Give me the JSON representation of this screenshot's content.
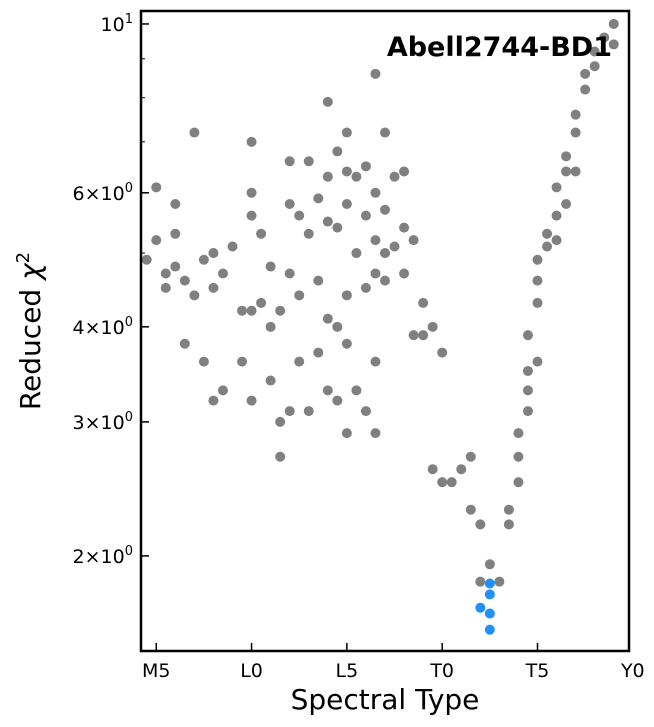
{
  "chart_data": {
    "type": "scatter",
    "title": "Abell2744-BD1",
    "xlabel": "Spectral Type",
    "ylabel": "Reduced χ²",
    "yscale": "log",
    "xlim": [
      -0.8,
      24.8
    ],
    "ylim": [
      1.5,
      10.4
    ],
    "x_ticks": [
      {
        "label": "M5",
        "value": 0
      },
      {
        "label": "L0",
        "value": 5
      },
      {
        "label": "L5",
        "value": 10
      },
      {
        "label": "T0",
        "value": 15
      },
      {
        "label": "T5",
        "value": 20
      },
      {
        "label": "Y0",
        "value": 25
      }
    ],
    "y_ticks": [
      {
        "base": "2",
        "value": 2
      },
      {
        "base": "3",
        "value": 3
      },
      {
        "base": "4",
        "value": 4
      },
      {
        "base": "6",
        "value": 6
      },
      {
        "base": "10",
        "value": 10
      }
    ],
    "series": [
      {
        "color": "#808080",
        "points": [
          [
            -0.5,
            4.9
          ],
          [
            0.0,
            6.1
          ],
          [
            0.0,
            5.2
          ],
          [
            0.5,
            4.7
          ],
          [
            0.5,
            4.5
          ],
          [
            1.0,
            5.8
          ],
          [
            1.0,
            5.3
          ],
          [
            1.0,
            4.8
          ],
          [
            1.5,
            3.8
          ],
          [
            1.5,
            4.6
          ],
          [
            2.0,
            7.2
          ],
          [
            2.0,
            4.4
          ],
          [
            2.5,
            3.6
          ],
          [
            2.5,
            4.9
          ],
          [
            3.0,
            3.2
          ],
          [
            3.0,
            4.5
          ],
          [
            3.0,
            5.0
          ],
          [
            3.5,
            3.3
          ],
          [
            3.5,
            4.7
          ],
          [
            4.0,
            5.1
          ],
          [
            4.5,
            3.6
          ],
          [
            4.5,
            4.2
          ],
          [
            5.0,
            7.0
          ],
          [
            5.0,
            6.0
          ],
          [
            5.0,
            5.6
          ],
          [
            5.0,
            4.2
          ],
          [
            5.0,
            3.2
          ],
          [
            5.5,
            5.3
          ],
          [
            5.5,
            4.3
          ],
          [
            6.0,
            3.4
          ],
          [
            6.0,
            4.0
          ],
          [
            6.0,
            4.8
          ],
          [
            6.5,
            2.7
          ],
          [
            6.5,
            3.0
          ],
          [
            6.5,
            4.2
          ],
          [
            7.0,
            6.6
          ],
          [
            7.0,
            5.8
          ],
          [
            7.0,
            4.7
          ],
          [
            7.0,
            3.1
          ],
          [
            7.5,
            5.6
          ],
          [
            7.5,
            4.4
          ],
          [
            7.5,
            3.6
          ],
          [
            8.0,
            6.6
          ],
          [
            8.0,
            5.3
          ],
          [
            8.0,
            3.1
          ],
          [
            8.5,
            5.9
          ],
          [
            8.5,
            4.6
          ],
          [
            8.5,
            3.7
          ],
          [
            9.0,
            7.9
          ],
          [
            9.0,
            6.3
          ],
          [
            9.0,
            5.5
          ],
          [
            9.0,
            4.1
          ],
          [
            9.0,
            3.3
          ],
          [
            9.5,
            6.8
          ],
          [
            9.5,
            5.4
          ],
          [
            9.5,
            4.0
          ],
          [
            9.5,
            3.2
          ],
          [
            10.0,
            7.2
          ],
          [
            10.0,
            6.4
          ],
          [
            10.0,
            5.8
          ],
          [
            10.0,
            4.4
          ],
          [
            10.0,
            3.8
          ],
          [
            10.0,
            2.9
          ],
          [
            10.5,
            6.3
          ],
          [
            10.5,
            5.0
          ],
          [
            10.5,
            3.3
          ],
          [
            11.0,
            6.5
          ],
          [
            11.0,
            5.6
          ],
          [
            11.0,
            4.5
          ],
          [
            11.0,
            3.1
          ],
          [
            11.5,
            8.6
          ],
          [
            11.5,
            6.0
          ],
          [
            11.5,
            5.2
          ],
          [
            11.5,
            4.7
          ],
          [
            11.5,
            3.6
          ],
          [
            11.5,
            2.9
          ],
          [
            12.0,
            7.2
          ],
          [
            12.0,
            5.7
          ],
          [
            12.0,
            5.0
          ],
          [
            12.0,
            4.6
          ],
          [
            12.5,
            6.3
          ],
          [
            12.5,
            5.1
          ],
          [
            13.0,
            6.4
          ],
          [
            13.0,
            5.4
          ],
          [
            13.0,
            4.7
          ],
          [
            13.5,
            5.2
          ],
          [
            13.5,
            3.9
          ],
          [
            14.0,
            4.3
          ],
          [
            14.0,
            3.9
          ],
          [
            14.5,
            4.0
          ],
          [
            14.5,
            2.6
          ],
          [
            15.0,
            2.5
          ],
          [
            15.0,
            3.7
          ],
          [
            15.5,
            2.5
          ],
          [
            16.0,
            2.6
          ],
          [
            16.5,
            2.7
          ],
          [
            16.5,
            2.3
          ],
          [
            17.0,
            1.85
          ],
          [
            17.0,
            2.2
          ],
          [
            17.5,
            1.95
          ],
          [
            18.0,
            1.85
          ],
          [
            18.5,
            2.3
          ],
          [
            18.5,
            2.2
          ],
          [
            19.0,
            2.5
          ],
          [
            19.0,
            2.7
          ],
          [
            19.5,
            3.5
          ],
          [
            19.5,
            3.9
          ],
          [
            20.0,
            4.3
          ],
          [
            20.0,
            4.6
          ],
          [
            20.0,
            4.9
          ],
          [
            20.5,
            5.1
          ],
          [
            20.5,
            5.3
          ],
          [
            21.0,
            5.6
          ],
          [
            21.0,
            6.1
          ],
          [
            21.5,
            6.4
          ],
          [
            21.5,
            6.7
          ],
          [
            22.0,
            7.2
          ],
          [
            22.0,
            7.6
          ],
          [
            22.5,
            8.2
          ],
          [
            22.5,
            8.6
          ],
          [
            23.0,
            9.2
          ],
          [
            23.5,
            9.6
          ],
          [
            24.0,
            10.0
          ],
          [
            19.5,
            3.1
          ],
          [
            19.5,
            3.3
          ],
          [
            19.0,
            2.9
          ],
          [
            20.0,
            3.6
          ],
          [
            21.0,
            5.2
          ],
          [
            21.5,
            5.8
          ],
          [
            22.0,
            6.4
          ],
          [
            23.0,
            8.8
          ],
          [
            24.0,
            9.4
          ]
        ]
      },
      {
        "color": "#1e90ff",
        "points": [
          [
            17.5,
            1.84
          ],
          [
            17.5,
            1.78
          ],
          [
            17.0,
            1.71
          ],
          [
            17.5,
            1.68
          ],
          [
            17.5,
            1.6
          ]
        ]
      }
    ],
    "grid": false,
    "legend": "none"
  }
}
